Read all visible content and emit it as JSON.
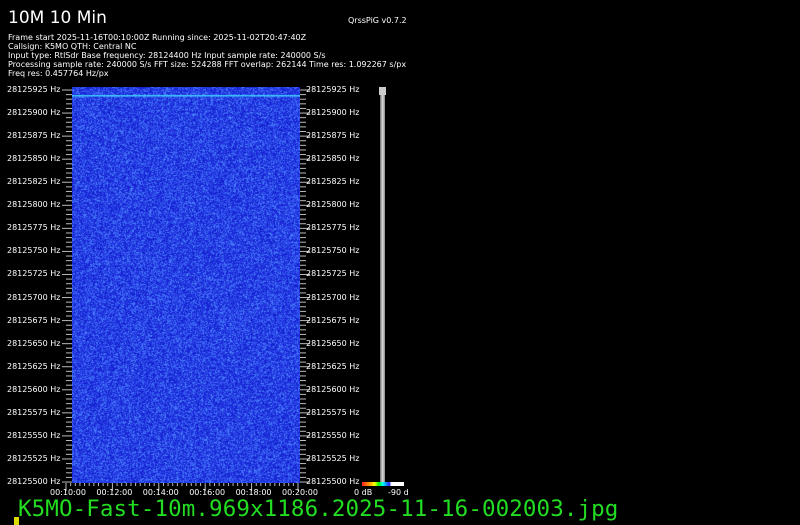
{
  "header": {
    "title": "10M 10 Min",
    "version": "QrssPiG v0.7.2"
  },
  "info_lines": [
    "Frame start 2025-11-16T00:10:00Z Running since: 2025-11-02T20:47:40Z",
    "Callsign: K5MO QTH: Central NC",
    "Input type: RtlSdr Base frequency: 28124400 Hz Input sample rate: 240000 S/s",
    "Processing sample rate: 240000 S/s FFT size: 524288 FFT overlap: 262144 Time res: 1.092267 s/px",
    "Freq res: 0.457764 Hz/px"
  ],
  "freq_labels": [
    "28125925 Hz",
    "28125900 Hz",
    "28125875 Hz",
    "28125850 Hz",
    "28125825 Hz",
    "28125800 Hz",
    "28125775 Hz",
    "28125750 Hz",
    "28125725 Hz",
    "28125700 Hz",
    "28125675 Hz",
    "28125650 Hz",
    "28125625 Hz",
    "28125600 Hz",
    "28125575 Hz",
    "28125550 Hz",
    "28125525 Hz",
    "28125500 Hz"
  ],
  "time_labels": [
    "00:10:00",
    "00:12:00",
    "00:14:00",
    "00:16:00",
    "00:18:00",
    "00:20:00"
  ],
  "colorbar": {
    "min_label": "0 dB",
    "max_label": "-90 d"
  },
  "filename": "K5MO-Fast-10m.969x1186.2025-11-16-002003.jpg",
  "colors": {
    "spectrogram_bg": "#1a30e8",
    "signal_line": "#40d0ff",
    "filename": "#22dd22"
  }
}
